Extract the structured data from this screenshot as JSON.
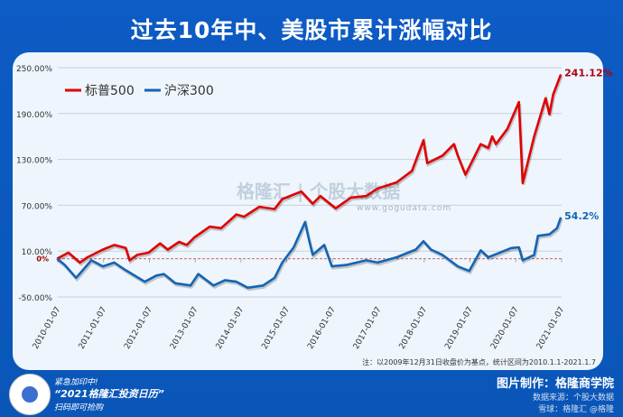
{
  "title": "过去10年中、美股市累计涨幅对比",
  "note": "注：以2009年12月31日收盘价为基点，统计区间为2010.1.1-2021.1.7",
  "watermark": {
    "text": "格隆汇 | 个股大数据",
    "url_text": "www.gogudata.com"
  },
  "footer": {
    "promo_line1": "紧急加印中!",
    "promo_line2": "“2021格隆汇投资日历”",
    "promo_line3": "扫码即可抢购",
    "image_credit": "图片制作：格隆商学院",
    "data_credit": "数据来源：个股大数据",
    "social_watermark": "雪球：格隆汇 @格隆"
  },
  "colors": {
    "sp500": "#e00000",
    "csi300": "#1464b4",
    "zero_line": "#c05050",
    "background": "#0d5bc4",
    "panel": "#eef5fc"
  },
  "chart_data": {
    "type": "line",
    "title": "过去10年中、美股市累计涨幅对比",
    "ylim": [
      -50,
      250
    ],
    "yticks": [
      "250.00%",
      "190.00%",
      "130.00%",
      "70.00%",
      "10.00%",
      "-50.00%"
    ],
    "ytick_values": [
      250,
      190,
      130,
      70,
      10,
      -50
    ],
    "zero_label": "0%",
    "xticks": [
      "2010-01-07",
      "2011-01-07",
      "2012-01-07",
      "2013-01-07",
      "2014-01-07",
      "2015-01-07",
      "2016-01-07",
      "2017-01-07",
      "2018-01-07",
      "2019-01-07",
      "2020-01-07",
      "2021-01-07"
    ],
    "grid": true,
    "legend_position": "top-left",
    "series": [
      {
        "name": "标普500",
        "end_label": "241.12%",
        "points": [
          [
            "2010-01",
            0
          ],
          [
            "2010-04",
            8
          ],
          [
            "2010-07",
            -5
          ],
          [
            "2010-09",
            2
          ],
          [
            "2011-01",
            12
          ],
          [
            "2011-04",
            18
          ],
          [
            "2011-07",
            14
          ],
          [
            "2011-08",
            -2
          ],
          [
            "2011-10",
            5
          ],
          [
            "2012-01",
            8
          ],
          [
            "2012-04",
            20
          ],
          [
            "2012-06",
            12
          ],
          [
            "2012-09",
            22
          ],
          [
            "2012-11",
            18
          ],
          [
            "2013-01",
            28
          ],
          [
            "2013-05",
            42
          ],
          [
            "2013-08",
            40
          ],
          [
            "2013-12",
            58
          ],
          [
            "2014-02",
            55
          ],
          [
            "2014-06",
            68
          ],
          [
            "2014-10",
            65
          ],
          [
            "2014-12",
            78
          ],
          [
            "2015-05",
            88
          ],
          [
            "2015-08",
            72
          ],
          [
            "2015-10",
            82
          ],
          [
            "2016-02",
            66
          ],
          [
            "2016-06",
            80
          ],
          [
            "2016-10",
            82
          ],
          [
            "2017-01",
            92
          ],
          [
            "2017-06",
            100
          ],
          [
            "2017-10",
            115
          ],
          [
            "2018-01",
            155
          ],
          [
            "2018-02",
            125
          ],
          [
            "2018-06",
            135
          ],
          [
            "2018-09",
            150
          ],
          [
            "2018-10",
            135
          ],
          [
            "2018-12",
            110
          ],
          [
            "2019-04",
            150
          ],
          [
            "2019-06",
            145
          ],
          [
            "2019-07",
            160
          ],
          [
            "2019-08",
            150
          ],
          [
            "2019-11",
            170
          ],
          [
            "2020-02",
            205
          ],
          [
            "2020-03",
            99
          ],
          [
            "2020-06",
            160
          ],
          [
            "2020-09",
            210
          ],
          [
            "2020-10",
            189
          ],
          [
            "2020-11",
            215
          ],
          [
            "2020-12",
            228
          ],
          [
            "2021-01",
            241.12
          ]
        ]
      },
      {
        "name": "沪深300",
        "end_label": "54.2%",
        "points": [
          [
            "2010-01",
            0
          ],
          [
            "2010-03",
            -8
          ],
          [
            "2010-06",
            -25
          ],
          [
            "2010-10",
            -2
          ],
          [
            "2011-01",
            -10
          ],
          [
            "2011-04",
            -5
          ],
          [
            "2011-07",
            -15
          ],
          [
            "2011-12",
            -30
          ],
          [
            "2012-03",
            -22
          ],
          [
            "2012-05",
            -20
          ],
          [
            "2012-08",
            -32
          ],
          [
            "2012-12",
            -35
          ],
          [
            "2013-02",
            -20
          ],
          [
            "2013-06",
            -35
          ],
          [
            "2013-09",
            -28
          ],
          [
            "2013-12",
            -30
          ],
          [
            "2014-03",
            -38
          ],
          [
            "2014-07",
            -35
          ],
          [
            "2014-10",
            -25
          ],
          [
            "2014-12",
            -5
          ],
          [
            "2015-03",
            15
          ],
          [
            "2015-06",
            48
          ],
          [
            "2015-07",
            25
          ],
          [
            "2015-08",
            5
          ],
          [
            "2015-11",
            18
          ],
          [
            "2016-01",
            -10
          ],
          [
            "2016-05",
            -8
          ],
          [
            "2016-10",
            -2
          ],
          [
            "2017-01",
            -5
          ],
          [
            "2017-06",
            2
          ],
          [
            "2017-11",
            12
          ],
          [
            "2018-01",
            23
          ],
          [
            "2018-03",
            12
          ],
          [
            "2018-06",
            5
          ],
          [
            "2018-10",
            -10
          ],
          [
            "2019-01",
            -16
          ],
          [
            "2019-04",
            11
          ],
          [
            "2019-06",
            2
          ],
          [
            "2019-09",
            8
          ],
          [
            "2019-12",
            14
          ],
          [
            "2020-02",
            15
          ],
          [
            "2020-03",
            -2
          ],
          [
            "2020-06",
            5
          ],
          [
            "2020-07",
            30
          ],
          [
            "2020-10",
            32
          ],
          [
            "2020-12",
            40
          ],
          [
            "2021-01",
            54.2
          ]
        ]
      }
    ]
  }
}
